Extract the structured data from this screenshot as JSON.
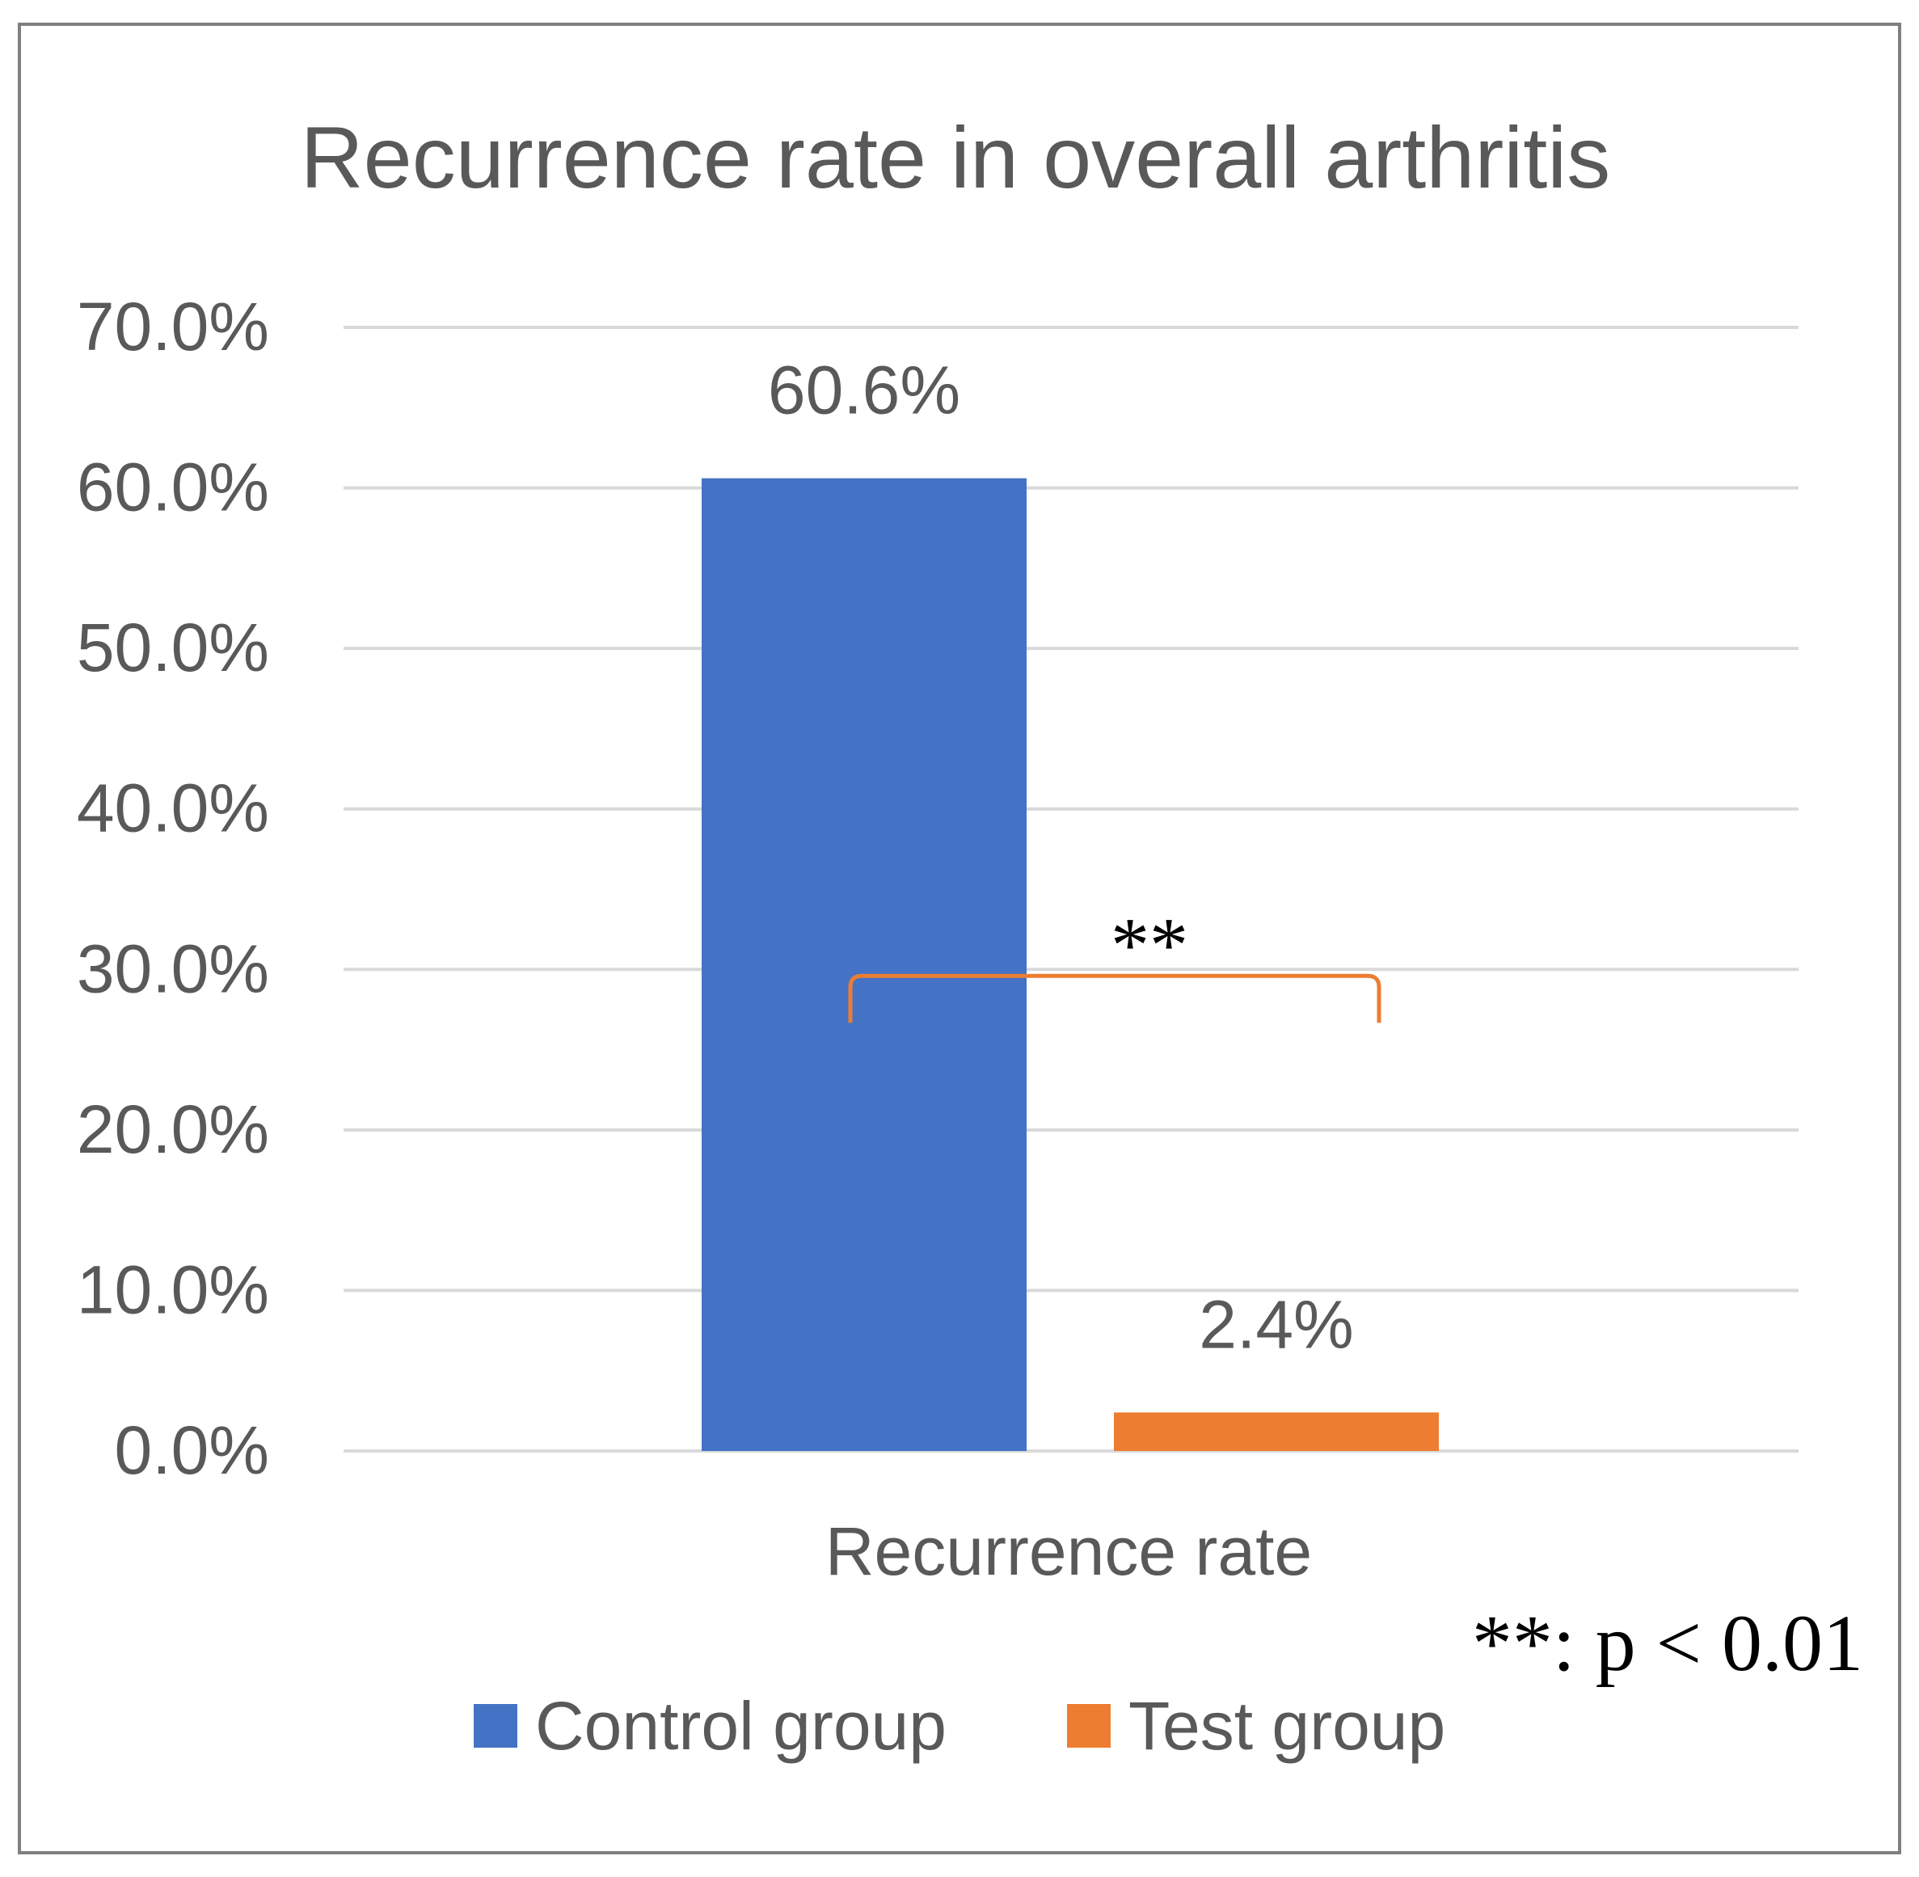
{
  "chart_data": {
    "type": "bar",
    "title": "Recurrence rate in overall arthritis",
    "categories": [
      "Recurrence rate"
    ],
    "series": [
      {
        "name": "Control group",
        "values": [
          60.6
        ],
        "color": "#4472C4",
        "data_label": "60.6%"
      },
      {
        "name": "Test group",
        "values": [
          2.4
        ],
        "color": "#ED7D31",
        "data_label": "2.4%"
      }
    ],
    "xlabel": "",
    "ylabel": "",
    "ylim": [
      0,
      70
    ],
    "yticks": [
      {
        "value": 0,
        "label": "0.0%"
      },
      {
        "value": 10,
        "label": "10.0%"
      },
      {
        "value": 20,
        "label": "20.0%"
      },
      {
        "value": 30,
        "label": "30.0%"
      },
      {
        "value": 40,
        "label": "40.0%"
      },
      {
        "value": 50,
        "label": "50.0%"
      },
      {
        "value": 60,
        "label": "60.0%"
      },
      {
        "value": 70,
        "label": "70.0%"
      }
    ],
    "grid": true,
    "legend": {
      "position": "bottom"
    },
    "significance": {
      "marker": "**",
      "bracket_level": 30,
      "bracket_color": "#ED7D31",
      "note": "**: p < 0.01"
    }
  },
  "colors": {
    "text": "#595959",
    "grid": "#D9D9D9",
    "frame": "#7F7F7F"
  }
}
